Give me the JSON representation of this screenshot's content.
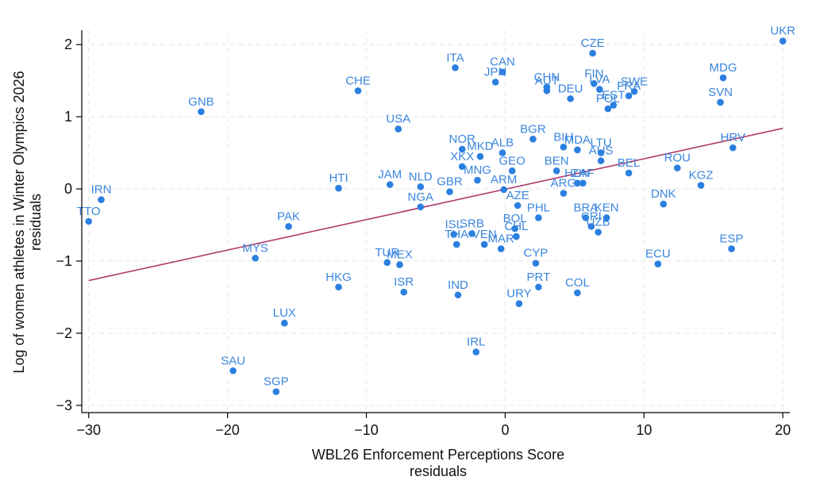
{
  "chart_data": {
    "type": "scatter",
    "xlabel": [
      "WBL26 Enforcement Perceptions Score",
      "residuals"
    ],
    "ylabel": [
      "Log of women athletes in Winter Olympics 2026",
      "residuals"
    ],
    "xlim": [
      -30.5,
      20.5
    ],
    "ylim": [
      -3.1,
      2.2
    ],
    "xticks": [
      -30,
      -20,
      -10,
      0,
      10,
      20
    ],
    "yticks": [
      -3,
      -2,
      -1,
      0,
      1,
      2
    ],
    "fit_line": {
      "x": [
        -30,
        20
      ],
      "y": [
        -1.27,
        0.84
      ]
    },
    "points": [
      {
        "label": "UKR",
        "x": 20.0,
        "y": 2.05
      },
      {
        "label": "CZE",
        "x": 6.3,
        "y": 1.88
      },
      {
        "label": "ITA",
        "x": -3.6,
        "y": 1.68
      },
      {
        "label": "CAN",
        "x": -0.2,
        "y": 1.62
      },
      {
        "label": "JPN",
        "x": -0.7,
        "y": 1.48
      },
      {
        "label": "MDG",
        "x": 15.7,
        "y": 1.54
      },
      {
        "label": "FIN",
        "x": 6.4,
        "y": 1.46
      },
      {
        "label": "CHN",
        "x": 3.0,
        "y": 1.41
      },
      {
        "label": "AUT",
        "x": 3.0,
        "y": 1.36
      },
      {
        "label": "LVA",
        "x": 6.8,
        "y": 1.38
      },
      {
        "label": "SWE",
        "x": 9.3,
        "y": 1.35
      },
      {
        "label": "FRA",
        "x": 8.9,
        "y": 1.29
      },
      {
        "label": "DEU",
        "x": 4.7,
        "y": 1.25
      },
      {
        "label": "EST",
        "x": 7.8,
        "y": 1.16
      },
      {
        "label": "POL",
        "x": 7.4,
        "y": 1.11
      },
      {
        "label": "CHE",
        "x": -10.6,
        "y": 1.36
      },
      {
        "label": "SVN",
        "x": 15.5,
        "y": 1.2
      },
      {
        "label": "GNB",
        "x": -21.9,
        "y": 1.07
      },
      {
        "label": "USA",
        "x": -7.7,
        "y": 0.83
      },
      {
        "label": "BGR",
        "x": 2.0,
        "y": 0.69
      },
      {
        "label": "HRV",
        "x": 16.4,
        "y": 0.57
      },
      {
        "label": "NOR",
        "x": -3.1,
        "y": 0.55
      },
      {
        "label": "MKD",
        "x": -1.8,
        "y": 0.45
      },
      {
        "label": "ALB",
        "x": -0.2,
        "y": 0.5
      },
      {
        "label": "BIH",
        "x": 4.2,
        "y": 0.58
      },
      {
        "label": "MDA",
        "x": 5.2,
        "y": 0.54
      },
      {
        "label": "LTU",
        "x": 6.9,
        "y": 0.5
      },
      {
        "label": "AUS",
        "x": 6.9,
        "y": 0.39
      },
      {
        "label": "XKX",
        "x": -3.1,
        "y": 0.31
      },
      {
        "label": "GEO",
        "x": 0.5,
        "y": 0.25
      },
      {
        "label": "MNG",
        "x": -2.0,
        "y": 0.12
      },
      {
        "label": "BEN",
        "x": 3.7,
        "y": 0.25
      },
      {
        "label": "ROU",
        "x": 12.4,
        "y": 0.29
      },
      {
        "label": "BEL",
        "x": 8.9,
        "y": 0.22
      },
      {
        "label": "HUN",
        "x": 5.2,
        "y": 0.08
      },
      {
        "label": "ZAF",
        "x": 5.6,
        "y": 0.08
      },
      {
        "label": "KGZ",
        "x": 14.1,
        "y": 0.05
      },
      {
        "label": "HTI",
        "x": -12.0,
        "y": 0.01
      },
      {
        "label": "JAM",
        "x": -8.3,
        "y": 0.06
      },
      {
        "label": "NLD",
        "x": -6.1,
        "y": 0.03
      },
      {
        "label": "ARM",
        "x": -0.1,
        "y": -0.01
      },
      {
        "label": "GBR",
        "x": -4.0,
        "y": -0.04
      },
      {
        "label": "ARG",
        "x": 4.2,
        "y": -0.06
      },
      {
        "label": "DNK",
        "x": 11.4,
        "y": -0.21
      },
      {
        "label": "IRN",
        "x": -29.1,
        "y": -0.15
      },
      {
        "label": "NGA",
        "x": -6.1,
        "y": -0.25
      },
      {
        "label": "AZE",
        "x": 0.9,
        "y": -0.23
      },
      {
        "label": "TTO",
        "x": -30.0,
        "y": -0.45
      },
      {
        "label": "PHL",
        "x": 2.4,
        "y": -0.4
      },
      {
        "label": "BRA",
        "x": 5.8,
        "y": -0.4
      },
      {
        "label": "KEN",
        "x": 7.3,
        "y": -0.4
      },
      {
        "label": "CRI",
        "x": 6.2,
        "y": -0.52
      },
      {
        "label": "UZB",
        "x": 6.7,
        "y": -0.6
      },
      {
        "label": "PAK",
        "x": -15.6,
        "y": -0.52
      },
      {
        "label": "BOL",
        "x": 0.7,
        "y": -0.55
      },
      {
        "label": "CHL",
        "x": 0.8,
        "y": -0.66
      },
      {
        "label": "ISL",
        "x": -3.7,
        "y": -0.63
      },
      {
        "label": "SRB",
        "x": -2.4,
        "y": -0.62
      },
      {
        "label": "THA",
        "x": -3.5,
        "y": -0.77
      },
      {
        "label": "VEN",
        "x": -1.5,
        "y": -0.77
      },
      {
        "label": "MAR",
        "x": -0.3,
        "y": -0.83
      },
      {
        "label": "ESP",
        "x": 16.3,
        "y": -0.83
      },
      {
        "label": "MYS",
        "x": -18.0,
        "y": -0.96
      },
      {
        "label": "TUR",
        "x": -8.5,
        "y": -1.02
      },
      {
        "label": "MEX",
        "x": -7.6,
        "y": -1.05
      },
      {
        "label": "CYP",
        "x": 2.2,
        "y": -1.03
      },
      {
        "label": "ECU",
        "x": 11.0,
        "y": -1.04
      },
      {
        "label": "HKG",
        "x": -12.0,
        "y": -1.36
      },
      {
        "label": "PRT",
        "x": 2.4,
        "y": -1.36
      },
      {
        "label": "ISR",
        "x": -7.3,
        "y": -1.43
      },
      {
        "label": "IND",
        "x": -3.4,
        "y": -1.47
      },
      {
        "label": "COL",
        "x": 5.2,
        "y": -1.44
      },
      {
        "label": "URY",
        "x": 1.0,
        "y": -1.59
      },
      {
        "label": "LUX",
        "x": -15.9,
        "y": -1.86
      },
      {
        "label": "IRL",
        "x": -2.1,
        "y": -2.26
      },
      {
        "label": "SAU",
        "x": -19.6,
        "y": -2.52
      },
      {
        "label": "SGP",
        "x": -16.5,
        "y": -2.81
      }
    ]
  }
}
